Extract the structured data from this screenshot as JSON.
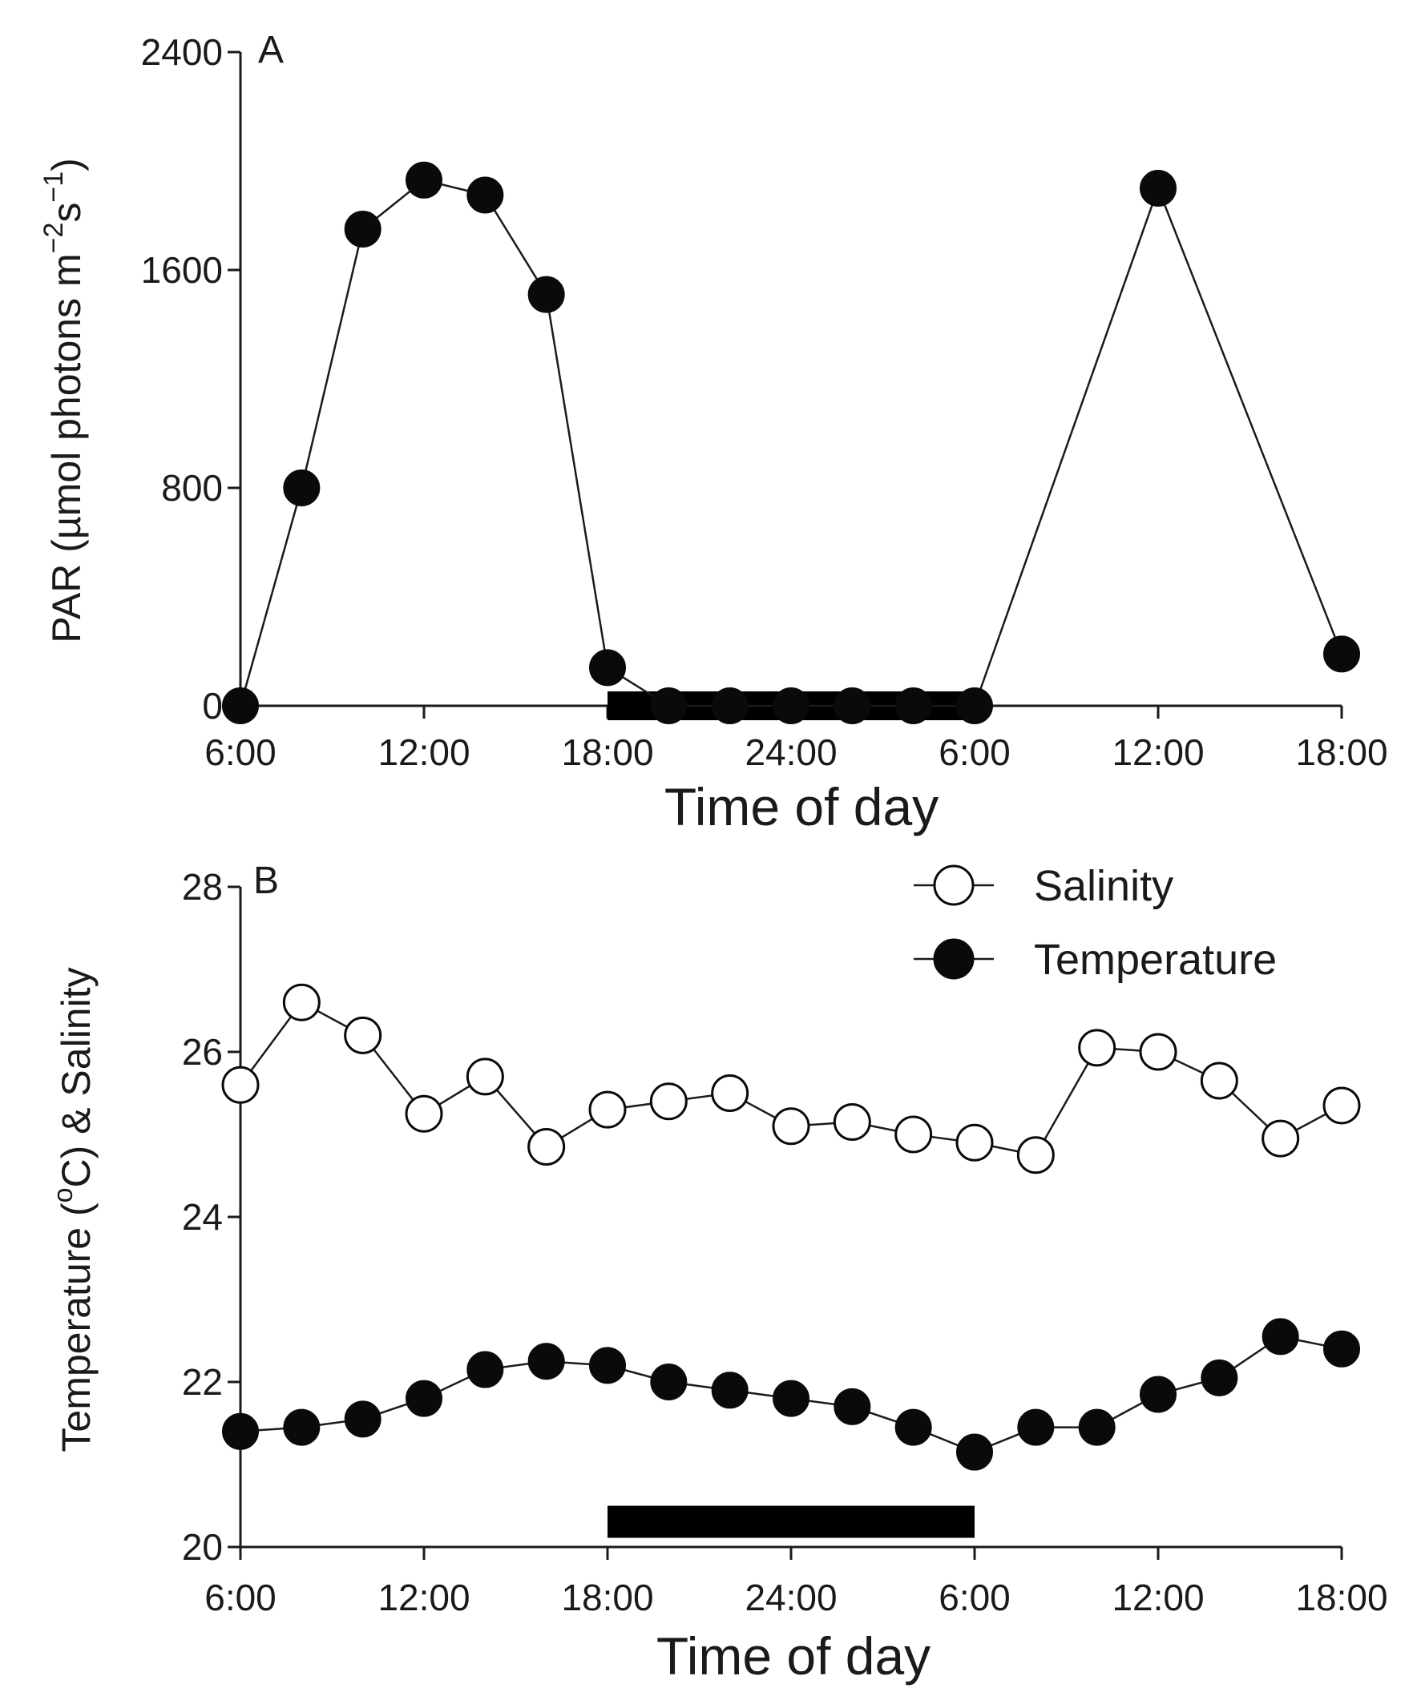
{
  "chart_data": [
    {
      "type": "line",
      "panel": "A",
      "categories": [
        "6:00",
        "12:00",
        "18:00",
        "24:00",
        "6:00",
        "12:00",
        "18:00"
      ],
      "xlabel": "Time of day",
      "ylabel_parts": [
        "PAR (µmol photons m",
        "−2",
        "s",
        "−1",
        ")"
      ],
      "yticks": [
        "0",
        "800",
        "1600",
        "2400"
      ],
      "ylim": [
        0,
        2400
      ],
      "xlim": [
        0,
        36
      ],
      "night_bar": {
        "x_start": 12,
        "x_end": 24,
        "y": 0
      },
      "series": [
        {
          "name": "PAR",
          "marker": "filled",
          "x": [
            0,
            2,
            4,
            6,
            8,
            10,
            12,
            14,
            16,
            18,
            20,
            22,
            24,
            30,
            36
          ],
          "values": [
            0,
            800,
            1750,
            1930,
            1875,
            1510,
            140,
            0,
            0,
            0,
            0,
            0,
            0,
            1900,
            190
          ]
        }
      ]
    },
    {
      "type": "line",
      "panel": "B",
      "categories": [
        "6:00",
        "12:00",
        "18:00",
        "24:00",
        "6:00",
        "12:00",
        "18:00"
      ],
      "xlabel": "Time of day",
      "ylabel_parts": [
        "Temperature (",
        "o",
        "C) & Salinity"
      ],
      "yticks": [
        "20",
        "22",
        "24",
        "26",
        "28"
      ],
      "ylim": [
        20,
        28
      ],
      "xlim": [
        0,
        36
      ],
      "night_bar": {
        "x_start": 12,
        "x_end": 24,
        "y": 20.15
      },
      "legend": {
        "position": "top-right"
      },
      "series": [
        {
          "name": "Salinity",
          "marker": "open",
          "x": [
            0,
            2,
            4,
            6,
            8,
            10,
            12,
            14,
            16,
            18,
            20,
            22,
            24,
            26,
            28,
            30,
            32,
            34,
            36
          ],
          "values": [
            25.6,
            26.6,
            26.2,
            25.25,
            25.7,
            24.85,
            25.3,
            25.4,
            25.5,
            25.1,
            25.15,
            25.0,
            24.9,
            24.75,
            26.05,
            26.0,
            25.65,
            24.95,
            25.35
          ]
        },
        {
          "name": "Temperature",
          "marker": "filled",
          "x": [
            0,
            2,
            4,
            6,
            8,
            10,
            12,
            14,
            16,
            18,
            20,
            22,
            24,
            26,
            28,
            30,
            32,
            34,
            36
          ],
          "values": [
            21.4,
            21.45,
            21.55,
            21.8,
            22.15,
            22.25,
            22.2,
            22.0,
            21.9,
            21.8,
            21.7,
            21.45,
            21.15,
            21.45,
            21.45,
            21.85,
            22.05,
            22.55,
            22.4
          ]
        }
      ]
    }
  ]
}
